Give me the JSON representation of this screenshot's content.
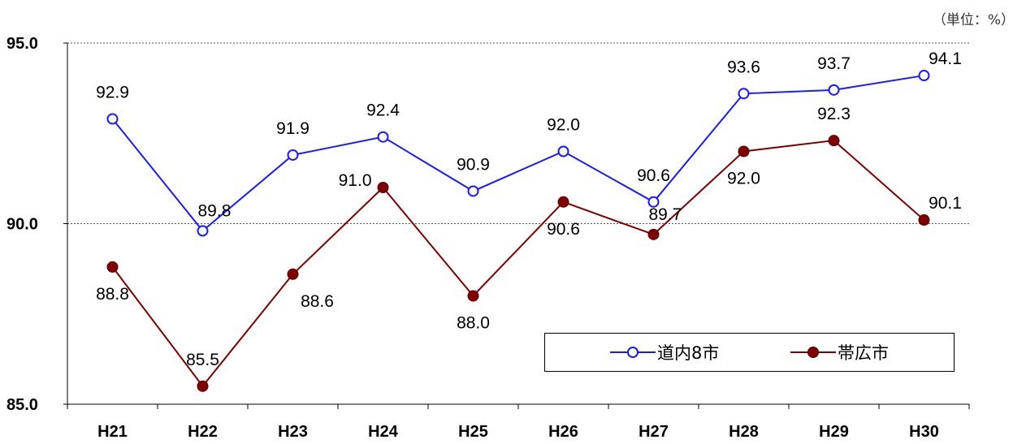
{
  "unit_label": "（単位：%）",
  "legend": [
    {
      "label": "道内8市",
      "color": "#1a1aff",
      "marker": "open-circle"
    },
    {
      "label": "帯広市",
      "color": "#7f0000",
      "marker": "filled-circle"
    }
  ],
  "chart_data": {
    "type": "line",
    "categories": [
      "H21",
      "H22",
      "H23",
      "H24",
      "H25",
      "H26",
      "H27",
      "H28",
      "H29",
      "H30"
    ],
    "series": [
      {
        "name": "道内8市",
        "color": "#1a1aff",
        "marker": "open-circle",
        "values": [
          92.9,
          89.8,
          91.9,
          92.4,
          90.9,
          92.0,
          90.6,
          93.6,
          93.7,
          94.1
        ],
        "labels": [
          "92.9",
          "89.8",
          "91.9",
          "92.4",
          "90.9",
          "92.0",
          "90.6",
          "93.6",
          "93.7",
          "94.1"
        ],
        "label_pos": [
          "above",
          "right",
          "above",
          "above",
          "above",
          "above",
          "above",
          "above",
          "above",
          "above-right"
        ]
      },
      {
        "name": "帯広市",
        "color": "#7f0000",
        "marker": "filled-circle",
        "values": [
          88.8,
          85.5,
          88.6,
          91.0,
          88.0,
          90.6,
          89.7,
          92.0,
          92.3,
          90.1
        ],
        "labels": [
          "88.8",
          "85.5",
          "88.6",
          "91.0",
          "88.0",
          "90.6",
          "89.7",
          "92.0",
          "92.3",
          "90.1"
        ],
        "label_pos": [
          "below",
          "above",
          "below-right",
          "left",
          "below",
          "below",
          "right",
          "below",
          "above",
          "above-right"
        ]
      }
    ],
    "y_ticks": [
      "95.0",
      "90.0",
      "85.0"
    ],
    "ylim": [
      85,
      95
    ],
    "gridlines": [
      90,
      95
    ],
    "grid_style": "dotted"
  }
}
